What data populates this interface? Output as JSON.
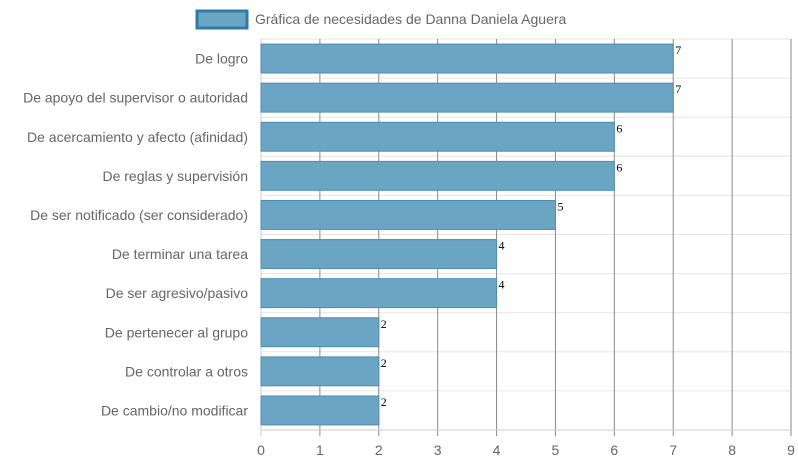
{
  "chart_data": {
    "type": "bar",
    "orientation": "horizontal",
    "categories": [
      "De logro",
      "De apoyo del supervisor o autoridad",
      "De acercamiento y afecto (afinidad)",
      "De reglas y supervisión",
      "De ser notificado (ser considerado)",
      "De terminar una tarea",
      "De ser agresivo/pasivo",
      "De pertenecer al grupo",
      "De controlar a otros",
      "De cambio/no modificar"
    ],
    "series": [
      {
        "name": "Gráfica de necesidades de Danna Daniela Aguera",
        "values": [
          7,
          7,
          6,
          6,
          5,
          4,
          4,
          2,
          2,
          2
        ]
      }
    ],
    "xlim": [
      0,
      9
    ],
    "x_ticks": [
      "0",
      "1",
      "2",
      "3",
      "4",
      "5",
      "6",
      "7",
      "8",
      "9"
    ],
    "grid": true,
    "legend_position": "top",
    "data_labels": true,
    "colors": {
      "bar_fill": "#6ba5c4",
      "bar_stroke": "#4f8db0",
      "legend_fill": "#6ba5c4",
      "legend_stroke": "#2f7aa8",
      "grid_v": "#8a8a8a",
      "grid_h": "#e6e6e6",
      "axis": "#cccccc",
      "text": "#666666",
      "data_label": "#000000"
    }
  }
}
